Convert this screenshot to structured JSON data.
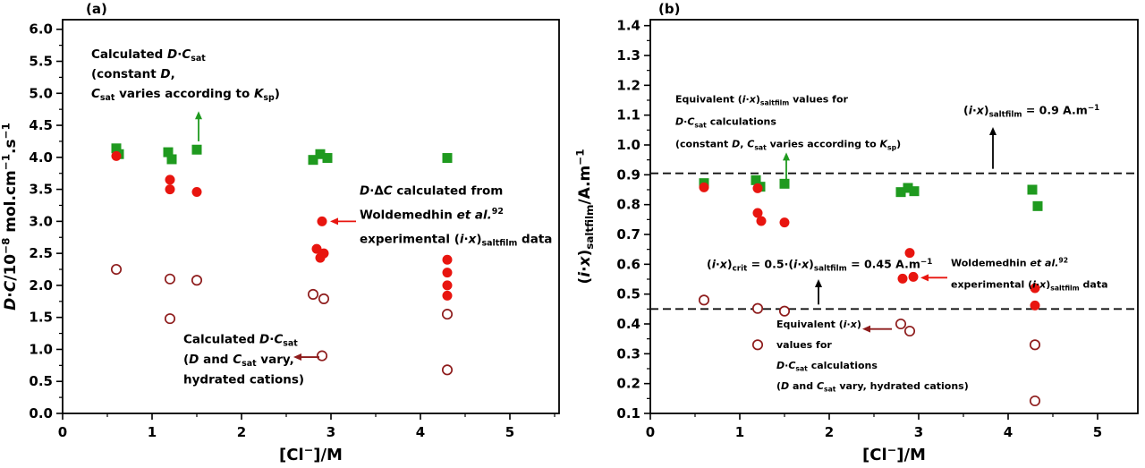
{
  "accent_colors": {
    "green": "#1f9a1f",
    "red": "#e8150f",
    "dark_red": "#8e1c1c",
    "black": "#000000"
  },
  "chart_data": [
    {
      "type": "scatter",
      "panel_label": "(a)",
      "xlabel": "[Cl^{−}]/M",
      "ylabel": "*D*·*C*/10^{−8} mol.cm^{−1}.s^{−1}",
      "xlim": [
        0,
        5.55
      ],
      "ylim": [
        0,
        6.15
      ],
      "x_ticks": {
        "major": 1,
        "minor": 0.5,
        "decimals": 0
      },
      "y_ticks": {
        "major": 0.5,
        "minor": 0.25,
        "decimals": 1
      },
      "grid": false,
      "series": [
        {
          "name": "calculated-DCsat-constant-D",
          "marker": "square",
          "color": "#1f9a1f",
          "points": [
            [
              0.6,
              4.14
            ],
            [
              0.63,
              4.05
            ],
            [
              1.18,
              4.08
            ],
            [
              1.22,
              3.97
            ],
            [
              1.5,
              4.12
            ],
            [
              2.8,
              3.96
            ],
            [
              2.88,
              4.05
            ],
            [
              2.96,
              3.99
            ],
            [
              4.3,
              3.99
            ]
          ]
        },
        {
          "name": "D-deltaC-from-experimental-data",
          "marker": "circle",
          "color": "#e8150f",
          "points": [
            [
              0.6,
              4.02
            ],
            [
              1.2,
              3.65
            ],
            [
              1.2,
              3.5
            ],
            [
              1.5,
              3.46
            ],
            [
              2.9,
              3.0
            ],
            [
              2.84,
              2.57
            ],
            [
              2.92,
              2.5
            ],
            [
              2.88,
              2.43
            ],
            [
              4.3,
              2.4
            ],
            [
              4.3,
              2.2
            ],
            [
              4.3,
              2.0
            ],
            [
              4.3,
              1.84
            ]
          ]
        },
        {
          "name": "calculated-DCsat-hydrated-cations",
          "marker": "open-circle",
          "color": "#8e1c1c",
          "points": [
            [
              0.6,
              2.25
            ],
            [
              1.2,
              2.1
            ],
            [
              1.5,
              2.08
            ],
            [
              1.2,
              1.48
            ],
            [
              2.8,
              1.86
            ],
            [
              2.92,
              1.79
            ],
            [
              2.9,
              0.9
            ],
            [
              4.3,
              1.55
            ],
            [
              4.3,
              0.68
            ]
          ]
        }
      ],
      "annotations": [
        {
          "x": 0.32,
          "y": 5.55,
          "lh": 22,
          "size": 13.5,
          "color": "#1f9a1f",
          "lines": [
            "Calculated *D*·*C*_{sat}",
            "(constant *D*,",
            "*C*_{sat} varies according to *K*_{sp})"
          ]
        },
        {
          "x": 3.32,
          "y": 3.42,
          "lh": 27,
          "size": 13.5,
          "color": "#e8150f",
          "lines": [
            "*D*·Δ*C* calculated from",
            "Woldemedhin *et al.*^{92}",
            "experimental (*i*·*x*)_{saltfilm} data"
          ]
        },
        {
          "x": 1.35,
          "y": 1.1,
          "lh": 22.5,
          "size": 13.5,
          "color": "#8e1c1c",
          "lines": [
            "Calculated *D*·*C*_{sat}",
            "(*D* and *C*_{sat} vary,",
            "hydrated cations)"
          ]
        }
      ],
      "arrows": [
        {
          "x1": 1.52,
          "y1": 4.25,
          "x2": 1.52,
          "y2": 4.72,
          "color": "#1f9a1f"
        },
        {
          "x1": 3.28,
          "y1": 3.0,
          "x2": 2.99,
          "y2": 3.0,
          "color": "#e8150f"
        },
        {
          "x1": 2.87,
          "y1": 0.88,
          "x2": 2.58,
          "y2": 0.88,
          "color": "#8e1c1c"
        }
      ],
      "ref_lines": []
    },
    {
      "type": "scatter",
      "panel_label": "(b)",
      "xlabel": "[Cl^{−}]/M",
      "ylabel": "(*i*·*x*)_{saltfilm}/A.m^{−1}",
      "xlim": [
        0,
        5.45
      ],
      "ylim": [
        0.1,
        1.42
      ],
      "x_ticks": {
        "major": 1,
        "minor": 0.5,
        "decimals": 0
      },
      "y_ticks": {
        "major": 0.1,
        "minor": 0.05,
        "decimals": 1
      },
      "grid": false,
      "series": [
        {
          "name": "equivalent-ix-saltfilm-DCsat-constant-D",
          "marker": "square",
          "color": "#1f9a1f",
          "points": [
            [
              0.6,
              0.872
            ],
            [
              1.18,
              0.882
            ],
            [
              1.23,
              0.86
            ],
            [
              1.5,
              0.87
            ],
            [
              2.8,
              0.842
            ],
            [
              2.88,
              0.856
            ],
            [
              2.95,
              0.845
            ],
            [
              4.27,
              0.85
            ],
            [
              4.33,
              0.795
            ]
          ]
        },
        {
          "name": "woldemedhin-experimental-ix-saltfilm",
          "marker": "circle",
          "color": "#e8150f",
          "points": [
            [
              0.6,
              0.858
            ],
            [
              1.2,
              0.855
            ],
            [
              1.2,
              0.772
            ],
            [
              1.24,
              0.745
            ],
            [
              1.5,
              0.74
            ],
            [
              2.82,
              0.552
            ],
            [
              2.9,
              0.638
            ],
            [
              2.94,
              0.558
            ],
            [
              4.3,
              0.52
            ],
            [
              4.3,
              0.462
            ]
          ]
        },
        {
          "name": "equivalent-ix-values-DCsat-hydrated",
          "marker": "open-circle",
          "color": "#8e1c1c",
          "points": [
            [
              0.6,
              0.48
            ],
            [
              1.2,
              0.452
            ],
            [
              1.5,
              0.443
            ],
            [
              1.2,
              0.33
            ],
            [
              2.8,
              0.4
            ],
            [
              2.9,
              0.376
            ],
            [
              4.3,
              0.33
            ],
            [
              4.3,
              0.142
            ]
          ]
        }
      ],
      "annotations": [
        {
          "x": 0.28,
          "y": 1.142,
          "lh": 25,
          "size": 11,
          "color": "#1f9a1f",
          "lines": [
            "Equivalent (*i*·*x*)_{saltfilm} values for",
            "*D*·*C*_{sat} calculations",
            "(constant *D*, *C*_{sat} varies according to *K*_{sp})"
          ]
        },
        {
          "x": 3.5,
          "y": 1.103,
          "lh": 24,
          "size": 12.5,
          "color": "#000000",
          "lines": [
            "(*i*·*x*)_{saltfilm} = 0.9 A.m^{−1}"
          ]
        },
        {
          "x": 0.63,
          "y": 0.587,
          "lh": 24,
          "size": 12.5,
          "color": "#000000",
          "lines": [
            "(*i*·*x*)_{crit} = 0.5·(*i*·*x*)_{saltfilm} = 0.45 A.m^{−1}"
          ]
        },
        {
          "x": 3.36,
          "y": 0.593,
          "lh": 24,
          "size": 11,
          "color": "#e8150f",
          "lines": [
            "Woldemedhin *et al.*^{92}",
            "experimental (*i*·*x*)_{saltfilm} data"
          ]
        },
        {
          "x": 1.41,
          "y": 0.388,
          "lh": 23,
          "size": 11,
          "color": "#8e1c1c",
          "lines": [
            "Equivalent (*i*·*x*)",
            "values for",
            "*D*·*C*_{sat} calculations",
            "(*D* and *C*_{sat} vary, hydrated cations)"
          ]
        }
      ],
      "arrows": [
        {
          "x1": 1.52,
          "y1": 0.885,
          "x2": 1.52,
          "y2": 0.975,
          "color": "#1f9a1f"
        },
        {
          "x1": 3.83,
          "y1": 0.92,
          "x2": 3.83,
          "y2": 1.06,
          "color": "#000000"
        },
        {
          "x1": 1.88,
          "y1": 0.465,
          "x2": 1.88,
          "y2": 0.55,
          "color": "#000000"
        },
        {
          "x1": 3.32,
          "y1": 0.555,
          "x2": 3.02,
          "y2": 0.555,
          "color": "#e8150f"
        },
        {
          "x1": 2.7,
          "y1": 0.383,
          "x2": 2.37,
          "y2": 0.383,
          "color": "#8e1c1c"
        }
      ],
      "ref_lines": [
        {
          "y": 0.905,
          "style": "dashed",
          "color": "#111111"
        },
        {
          "y": 0.45,
          "style": "dashed",
          "color": "#111111"
        }
      ]
    }
  ]
}
